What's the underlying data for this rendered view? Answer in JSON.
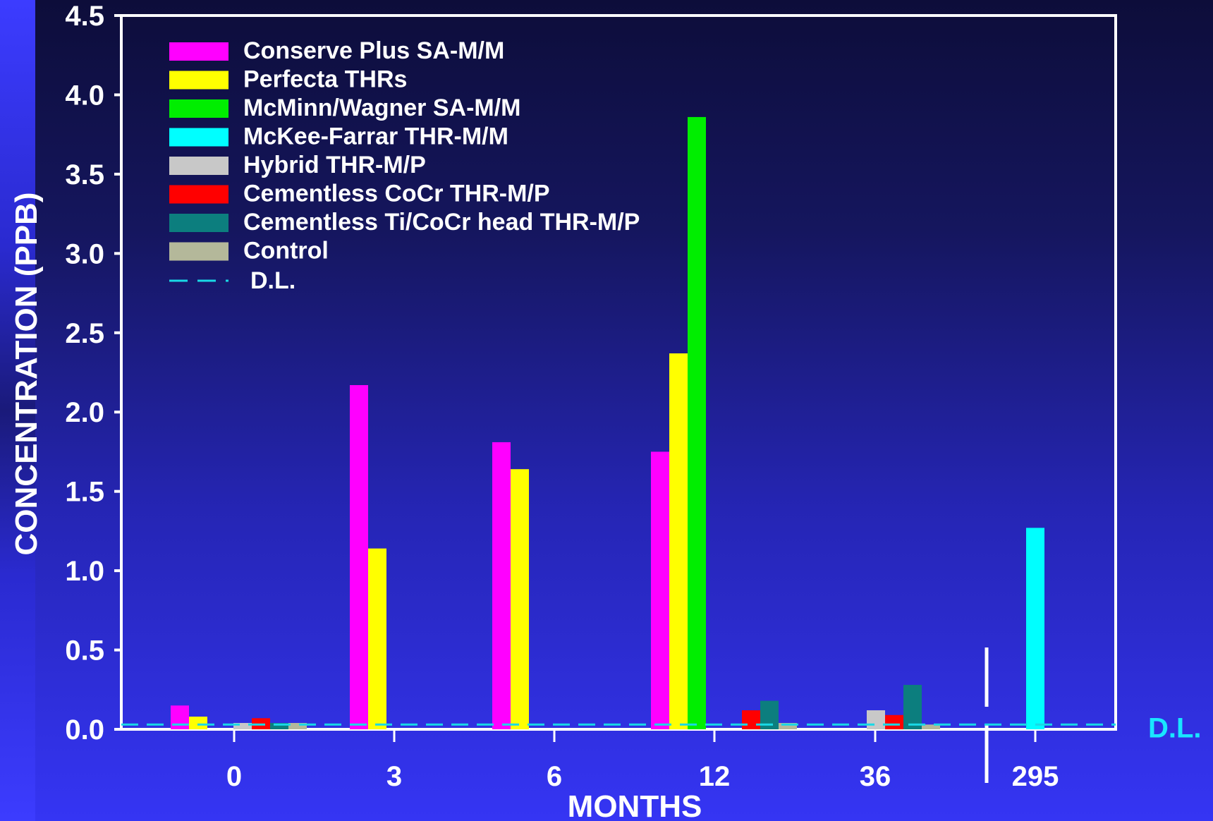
{
  "chart_data": {
    "type": "bar",
    "xlabel": "MONTHS",
    "ylabel": "CONCENTRATION (PPB)",
    "ylim": [
      0,
      4.5
    ],
    "yticks": [
      "0.0",
      "0.5",
      "1.0",
      "1.5",
      "2.0",
      "2.5",
      "3.0",
      "3.5",
      "4.0",
      "4.5"
    ],
    "categories": [
      "0",
      "3",
      "6",
      "12",
      "36",
      "295"
    ],
    "detection_limit": {
      "label": "D.L.",
      "value": 0.03,
      "color": "#19d9e6"
    },
    "axis_break_between": [
      "36",
      "295"
    ],
    "legend_position": "top-left",
    "series": [
      {
        "name": "Conserve Plus SA-M/M",
        "color": "#ff00ff",
        "values": [
          0.15,
          2.17,
          1.81,
          1.75,
          null,
          null
        ]
      },
      {
        "name": "Perfecta THRs",
        "color": "#ffff00",
        "values": [
          0.08,
          1.14,
          1.64,
          2.37,
          null,
          null
        ]
      },
      {
        "name": "McMinn/Wagner SA-M/M",
        "color": "#00ee00",
        "values": [
          null,
          null,
          null,
          3.86,
          null,
          null
        ]
      },
      {
        "name": "McKee-Farrar THR-M/M",
        "color": "#00ffff",
        "values": [
          null,
          null,
          null,
          null,
          null,
          1.27
        ]
      },
      {
        "name": "Hybrid THR-M/P",
        "color": "#c8c8c8",
        "values": [
          0.04,
          null,
          null,
          null,
          0.12,
          null
        ]
      },
      {
        "name": "Cementless CoCr THR-M/P",
        "color": "#ff0000",
        "values": [
          0.07,
          null,
          null,
          0.12,
          0.09,
          null
        ]
      },
      {
        "name": "Cementless Ti/CoCr head THR-M/P",
        "color": "#0c7e7e",
        "values": [
          0.04,
          null,
          null,
          0.18,
          0.28,
          null
        ]
      },
      {
        "name": "Control",
        "color": "#b4b89a",
        "values": [
          0.04,
          null,
          null,
          0.04,
          0.03,
          null
        ]
      }
    ]
  }
}
